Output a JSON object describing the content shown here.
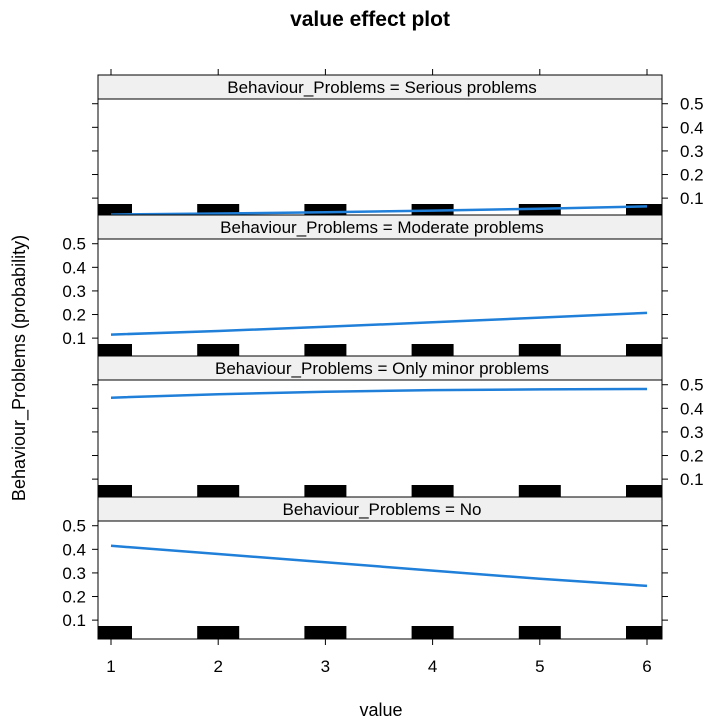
{
  "chart_data": {
    "type": "line",
    "title": "value effect plot",
    "xlabel": "value",
    "ylabel": "Behaviour_Problems (probability)",
    "xlim": [
      1,
      6
    ],
    "xticks": [
      1,
      2,
      3,
      4,
      5,
      6
    ],
    "yticks": [
      0.1,
      0.2,
      0.3,
      0.4,
      0.5
    ],
    "ytick_labels": [
      "0.1",
      "0.2",
      "0.3",
      "0.4",
      "0.5"
    ],
    "ylim": [
      0.02,
      0.52
    ],
    "rug_x": [
      1,
      2,
      3,
      4,
      5,
      6
    ],
    "panels": [
      {
        "strip": "Behaviour_Problems = Serious problems",
        "x": [
          1,
          2,
          3,
          4,
          5,
          6
        ],
        "y": [
          0.03,
          0.035,
          0.04,
          0.047,
          0.055,
          0.065
        ],
        "ytick_side": "right"
      },
      {
        "strip": "Behaviour_Problems = Moderate problems",
        "x": [
          1,
          2,
          3,
          4,
          5,
          6
        ],
        "y": [
          0.115,
          0.13,
          0.148,
          0.167,
          0.187,
          0.207
        ],
        "ytick_side": "left"
      },
      {
        "strip": "Behaviour_Problems = Only minor problems",
        "x": [
          1,
          2,
          3,
          4,
          5,
          6
        ],
        "y": [
          0.445,
          0.46,
          0.47,
          0.477,
          0.48,
          0.482
        ],
        "ytick_side": "right"
      },
      {
        "strip": "Behaviour_Problems = No",
        "x": [
          1,
          2,
          3,
          4,
          5,
          6
        ],
        "y": [
          0.415,
          0.38,
          0.345,
          0.31,
          0.275,
          0.245
        ],
        "ytick_side": "left"
      }
    ],
    "colors": {
      "line": "#1f7fd9",
      "strip_bg": "#f0f0f0",
      "rug": "#000000",
      "frame": "#000000"
    }
  }
}
